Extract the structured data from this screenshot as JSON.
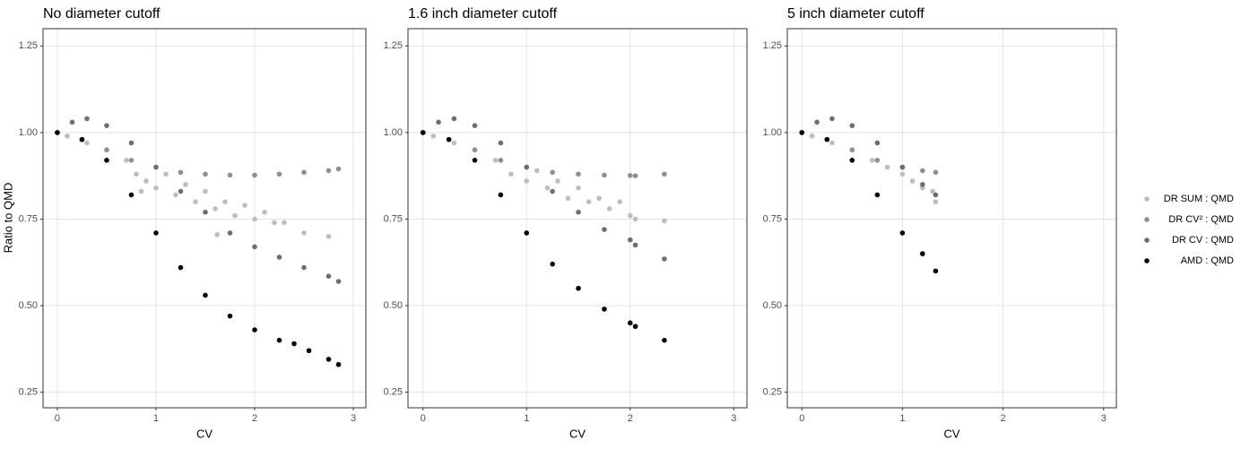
{
  "chart_data": [
    {
      "type": "scatter",
      "title": "No diameter cutoff",
      "xlabel": "CV",
      "ylabel": "Ratio to QMD",
      "xlim": [
        -0.145,
        3.127
      ],
      "ylim": [
        0.205,
        1.3
      ],
      "xticks": [
        0,
        1,
        2,
        3
      ],
      "yticks": [
        0.25,
        {
          "value": 0.5,
          "label": "0.50"
        },
        0.75,
        {
          "value": 1,
          "label": "1.00"
        },
        1.25
      ],
      "grid": true,
      "series": [
        {
          "name": "DR SUM : QMD",
          "color": "#bdbdbd",
          "x": [
            0.1,
            0.3,
            0.5,
            0.7,
            0.8,
            0.85,
            0.9,
            1.0,
            1.1,
            1.2,
            1.3,
            1.4,
            1.5,
            1.6,
            1.62,
            1.7,
            1.8,
            1.9,
            2.0,
            2.1,
            2.2,
            2.3,
            2.5,
            2.75
          ],
          "values": [
            0.99,
            0.97,
            0.95,
            0.92,
            0.88,
            0.83,
            0.86,
            0.84,
            0.88,
            0.82,
            0.85,
            0.8,
            0.83,
            0.78,
            0.705,
            0.8,
            0.76,
            0.79,
            0.75,
            0.77,
            0.74,
            0.74,
            0.71,
            0.7
          ]
        },
        {
          "name": "DR CV² : QMD",
          "color": "#8f8f8f",
          "x": [
            0,
            0.25,
            0.5,
            0.75,
            1,
            1.25,
            1.5,
            1.75,
            2,
            2.25,
            2.5,
            2.75,
            2.85
          ],
          "values": [
            1,
            0.98,
            0.95,
            0.92,
            0.9,
            0.885,
            0.88,
            0.877,
            0.877,
            0.88,
            0.885,
            0.89,
            0.895
          ]
        },
        {
          "name": "DR CV : QMD",
          "color": "#6e6e6e",
          "x": [
            0,
            0.15,
            0.3,
            0.5,
            0.75,
            1,
            1.25,
            1.5,
            1.75,
            2,
            2.25,
            2.5,
            2.75,
            2.85
          ],
          "values": [
            1,
            1.03,
            1.04,
            1.02,
            0.97,
            0.9,
            0.83,
            0.77,
            0.71,
            0.67,
            0.64,
            0.61,
            0.585,
            0.57
          ]
        },
        {
          "name": "AMD : QMD",
          "color": "#000000",
          "x": [
            0,
            0.25,
            0.5,
            0.75,
            1,
            1.25,
            1.5,
            1.75,
            2,
            2.25,
            2.4,
            2.55,
            2.75,
            2.85
          ],
          "values": [
            1,
            0.98,
            0.92,
            0.82,
            0.71,
            0.61,
            0.53,
            0.47,
            0.43,
            0.4,
            0.39,
            0.37,
            0.345,
            0.33
          ]
        }
      ]
    },
    {
      "type": "scatter",
      "title": "1.6 inch diameter cutoff",
      "xlabel": "CV",
      "xlim": [
        -0.145,
        3.127
      ],
      "ylim": [
        0.205,
        1.3
      ],
      "xticks": [
        0,
        1,
        2,
        3
      ],
      "yticks": [
        0.25,
        {
          "value": 0.5,
          "label": "0.50"
        },
        0.75,
        {
          "value": 1,
          "label": "1.00"
        },
        1.25
      ],
      "grid": true,
      "series": [
        {
          "color": "#bdbdbd",
          "x": [
            0.1,
            0.3,
            0.5,
            0.7,
            0.85,
            1.0,
            1.1,
            1.2,
            1.3,
            1.4,
            1.5,
            1.6,
            1.7,
            1.8,
            1.9,
            2.0,
            2.05,
            2.33
          ],
          "values": [
            0.99,
            0.97,
            0.95,
            0.92,
            0.88,
            0.86,
            0.89,
            0.84,
            0.86,
            0.81,
            0.84,
            0.8,
            0.81,
            0.78,
            0.8,
            0.76,
            0.75,
            0.745
          ]
        },
        {
          "color": "#8f8f8f",
          "x": [
            0,
            0.25,
            0.5,
            0.75,
            1,
            1.25,
            1.5,
            1.75,
            2,
            2.05,
            2.33
          ],
          "values": [
            1,
            0.98,
            0.95,
            0.92,
            0.9,
            0.885,
            0.88,
            0.877,
            0.876,
            0.875,
            0.88
          ]
        },
        {
          "color": "#6e6e6e",
          "x": [
            0,
            0.15,
            0.3,
            0.5,
            0.75,
            1,
            1.25,
            1.5,
            1.75,
            2,
            2.05,
            2.33
          ],
          "values": [
            1,
            1.03,
            1.04,
            1.02,
            0.97,
            0.9,
            0.83,
            0.77,
            0.72,
            0.69,
            0.675,
            0.635
          ]
        },
        {
          "color": "#000000",
          "x": [
            0,
            0.25,
            0.5,
            0.75,
            1,
            1.25,
            1.5,
            1.75,
            2,
            2.05,
            2.33
          ],
          "values": [
            1,
            0.98,
            0.92,
            0.82,
            0.71,
            0.62,
            0.55,
            0.49,
            0.45,
            0.44,
            0.4
          ]
        }
      ]
    },
    {
      "type": "scatter",
      "title": "5 inch diameter cutoff",
      "xlabel": "CV",
      "xlim": [
        -0.145,
        3.127
      ],
      "ylim": [
        0.205,
        1.3
      ],
      "xticks": [
        0,
        1,
        2,
        3
      ],
      "yticks": [
        0.25,
        {
          "value": 0.5,
          "label": "0.50"
        },
        0.75,
        {
          "value": 1,
          "label": "1.00"
        },
        1.25
      ],
      "grid": true,
      "series": [
        {
          "color": "#bdbdbd",
          "x": [
            0.1,
            0.3,
            0.5,
            0.7,
            0.85,
            1.0,
            1.1,
            1.2,
            1.3,
            1.33
          ],
          "values": [
            0.99,
            0.97,
            0.95,
            0.92,
            0.9,
            0.88,
            0.86,
            0.84,
            0.83,
            0.8
          ]
        },
        {
          "color": "#8f8f8f",
          "x": [
            0,
            0.25,
            0.5,
            0.75,
            1,
            1.2,
            1.33
          ],
          "values": [
            1,
            0.98,
            0.95,
            0.92,
            0.9,
            0.89,
            0.885
          ]
        },
        {
          "color": "#6e6e6e",
          "x": [
            0,
            0.15,
            0.3,
            0.5,
            0.75,
            1,
            1.2,
            1.33
          ],
          "values": [
            1,
            1.03,
            1.04,
            1.02,
            0.97,
            0.9,
            0.85,
            0.82
          ]
        },
        {
          "color": "#000000",
          "x": [
            0,
            0.25,
            0.5,
            0.75,
            1,
            1.2,
            1.33
          ],
          "values": [
            1,
            0.98,
            0.92,
            0.82,
            0.71,
            0.65,
            0.6
          ]
        }
      ]
    }
  ]
}
